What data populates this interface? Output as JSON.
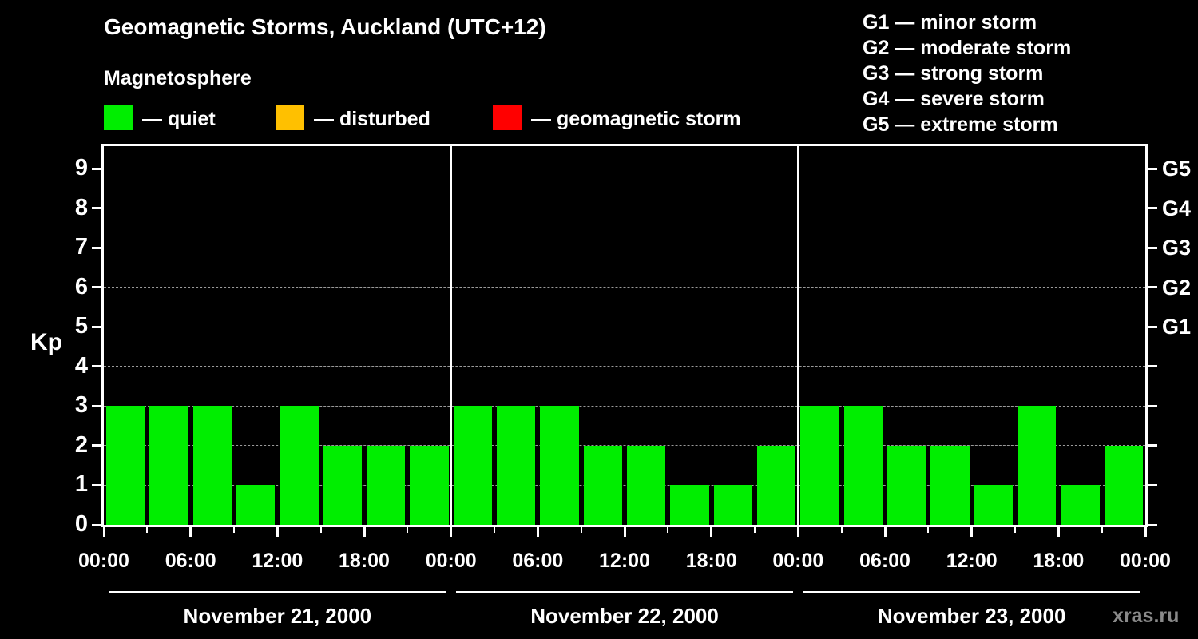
{
  "title": "Geomagnetic Storms, Auckland (UTC+12)",
  "subtitle": "Magnetosphere",
  "legend": {
    "items": [
      {
        "label": "— quiet",
        "color": "#00ee00"
      },
      {
        "label": "— disturbed",
        "color": "#ffc000"
      },
      {
        "label": "— geomagnetic storm",
        "color": "#ff0000"
      }
    ]
  },
  "g_scale_legend": [
    "G1 — minor storm",
    "G2 — moderate storm",
    "G3 — strong storm",
    "G4 — severe storm",
    "G5 — extreme storm"
  ],
  "kp_axis_title": "Kp",
  "watermark": "xras.ru",
  "chart_data": {
    "type": "bar",
    "title": "Geomagnetic Storms, Auckland (UTC+12)",
    "ylabel": "Kp",
    "ylim": [
      0,
      9.6
    ],
    "y_ticks": [
      0,
      1,
      2,
      3,
      4,
      5,
      6,
      7,
      8,
      9
    ],
    "grid": {
      "horizontal_dashed_at": [
        1,
        2,
        3,
        4,
        5,
        6,
        7,
        8,
        9
      ]
    },
    "bar_color": "#00ee00",
    "hours_per_bar": 3,
    "x_tick_labels": [
      "00:00",
      "06:00",
      "12:00",
      "18:00",
      "00:00",
      "06:00",
      "12:00",
      "18:00",
      "00:00",
      "06:00",
      "12:00",
      "18:00",
      "00:00"
    ],
    "right_axis": [
      {
        "label": "G1",
        "kp": 5
      },
      {
        "label": "G2",
        "kp": 6
      },
      {
        "label": "G3",
        "kp": 7
      },
      {
        "label": "G4",
        "kp": 8
      },
      {
        "label": "G5",
        "kp": 9
      }
    ],
    "days": [
      {
        "date": "November 21, 2000",
        "values": [
          3,
          3,
          3,
          1,
          3,
          2,
          2,
          2
        ]
      },
      {
        "date": "November 22, 2000",
        "values": [
          3,
          3,
          3,
          2,
          2,
          1,
          1,
          2
        ]
      },
      {
        "date": "November 23, 2000",
        "values": [
          3,
          3,
          2,
          2,
          1,
          3,
          1,
          2
        ]
      }
    ]
  }
}
